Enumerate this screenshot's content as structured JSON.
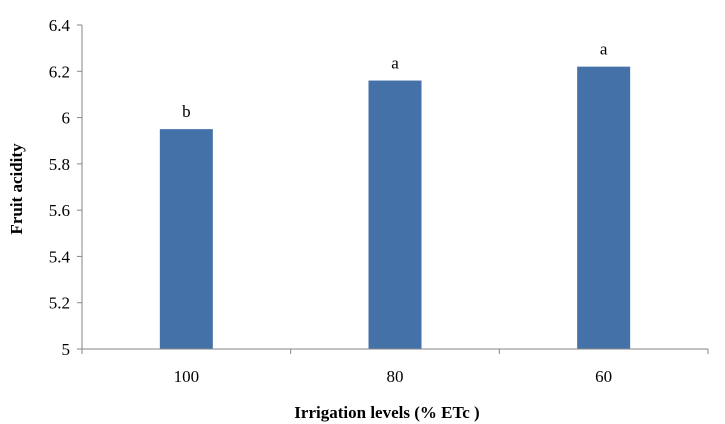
{
  "chart_data": {
    "type": "bar",
    "title": "",
    "xlabel": "Irrigation levels (% ETc )",
    "ylabel": "Fruit acidity",
    "categories": [
      "100",
      "80",
      "60"
    ],
    "values": [
      5.95,
      6.16,
      6.22
    ],
    "data_labels": [
      "b",
      "a",
      "a"
    ],
    "ylim": [
      5,
      6.4
    ],
    "yticks": [
      "5",
      "5.2",
      "5.4",
      "5.6",
      "5.8",
      "6",
      "6.2",
      "6.4"
    ],
    "ytick_values": [
      5,
      5.2,
      5.4,
      5.6,
      5.8,
      6,
      6.2,
      6.4
    ],
    "grid": false,
    "legend": "none",
    "bar_color": "#4472a8",
    "axis_color": "#868686"
  }
}
